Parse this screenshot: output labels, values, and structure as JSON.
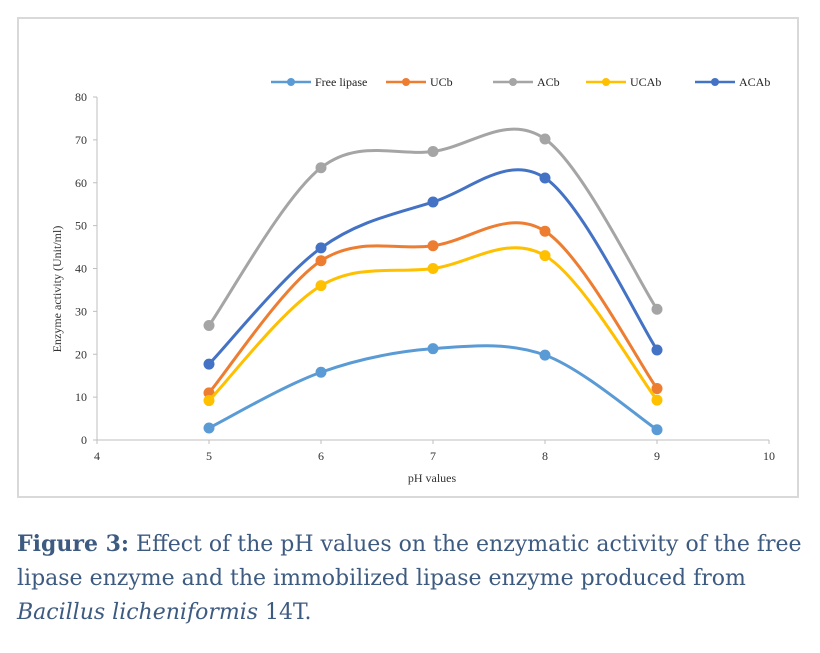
{
  "chart_data": {
    "type": "line",
    "xlabel": "pH values",
    "ylabel": "Enzyme activity (Unit/ml)",
    "xlim": [
      4,
      10
    ],
    "ylim": [
      0,
      80
    ],
    "xticks": [
      4,
      5,
      6,
      7,
      8,
      9,
      10
    ],
    "yticks": [
      0,
      10,
      20,
      30,
      40,
      50,
      60,
      70,
      80
    ],
    "x": [
      5,
      6,
      7,
      8,
      9
    ],
    "grid": false,
    "legend_position": "top",
    "smooth": true,
    "series": [
      {
        "name": "Free lipase",
        "color": "#5b9bd5",
        "values": [
          2.8,
          15.8,
          21.3,
          19.8,
          2.4
        ]
      },
      {
        "name": "UCb",
        "color": "#ed7d31",
        "values": [
          11,
          41.8,
          45.3,
          48.7,
          12
        ]
      },
      {
        "name": "ACb",
        "color": "#a5a5a5",
        "values": [
          26.7,
          63.5,
          67.3,
          70.2,
          30.5
        ]
      },
      {
        "name": "UCAb",
        "color": "#ffc000",
        "values": [
          9.2,
          36,
          40,
          43,
          9.3
        ]
      },
      {
        "name": "ACAb",
        "color": "#4472c4",
        "values": [
          17.7,
          44.8,
          55.5,
          61.1,
          21
        ]
      }
    ]
  },
  "caption": {
    "label": "Figure 3:",
    "text_before": " Effect of the pH values on the enzymatic activity of the free lipase enzyme and the immobilized lipase enzyme produced from ",
    "species": "Bacillus licheniformis",
    "text_after": " 14T."
  }
}
